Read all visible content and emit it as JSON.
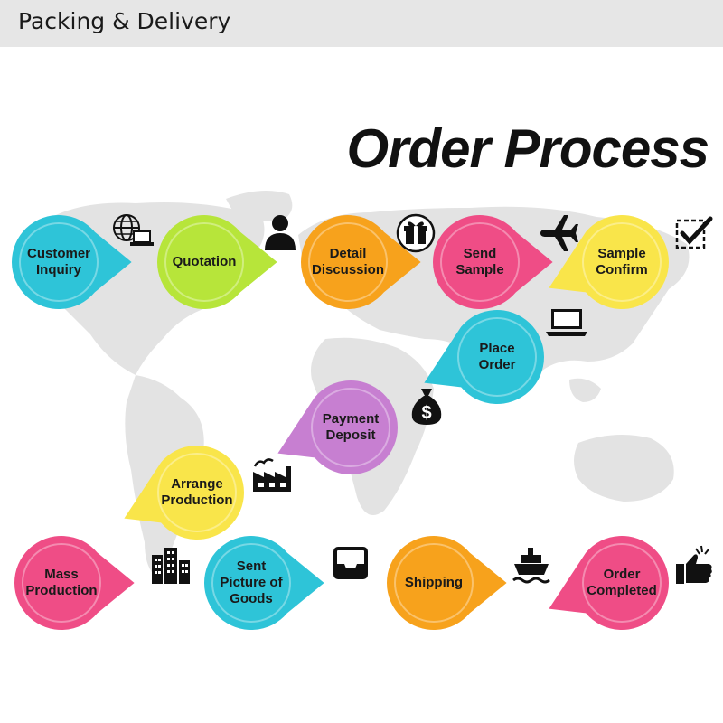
{
  "header": {
    "title": "Packing & Delivery"
  },
  "diagram_title": "Order Process",
  "colors": {
    "cyan": "#2ec4d8",
    "green": "#b7e53a",
    "orange": "#f7a21c",
    "pink": "#ef4d86",
    "yellow": "#f9e54a",
    "purple": "#c77fd1",
    "map": "#e3e3e3"
  },
  "steps": [
    {
      "id": "customer-inquiry",
      "label": [
        "Customer",
        "Inquiry"
      ],
      "color": "cyan",
      "icon": "globe-laptop-icon"
    },
    {
      "id": "quotation",
      "label": [
        "Quotation"
      ],
      "color": "green",
      "icon": "person-icon"
    },
    {
      "id": "detail-discussion",
      "label": [
        "Detail",
        "Discussion"
      ],
      "color": "orange",
      "icon": "gift-icon"
    },
    {
      "id": "send-sample",
      "label": [
        "Send",
        "Sample"
      ],
      "color": "pink",
      "icon": "airplane-icon"
    },
    {
      "id": "sample-confirm",
      "label": [
        "Sample",
        "Confirm"
      ],
      "color": "yellow",
      "icon": "checkbox-icon"
    },
    {
      "id": "place-order",
      "label": [
        "Place",
        "Order"
      ],
      "color": "cyan",
      "icon": "laptop-icon"
    },
    {
      "id": "payment-deposit",
      "label": [
        "Payment",
        "Deposit"
      ],
      "color": "purple",
      "icon": "money-bag-icon"
    },
    {
      "id": "arrange-production",
      "label": [
        "Arrange",
        "Production"
      ],
      "color": "yellow",
      "icon": "factory-icon"
    },
    {
      "id": "mass-production",
      "label": [
        "Mass",
        "Production"
      ],
      "color": "pink",
      "icon": "buildings-icon"
    },
    {
      "id": "sent-picture-of-goods",
      "label": [
        "Sent",
        "Picture of",
        "Goods"
      ],
      "color": "cyan",
      "icon": "inbox-tray-icon"
    },
    {
      "id": "shipping",
      "label": [
        "Shipping"
      ],
      "color": "orange",
      "icon": "ship-icon"
    },
    {
      "id": "order-completed",
      "label": [
        "Order",
        "Completed"
      ],
      "color": "pink",
      "icon": "thumbs-up-icon"
    }
  ]
}
